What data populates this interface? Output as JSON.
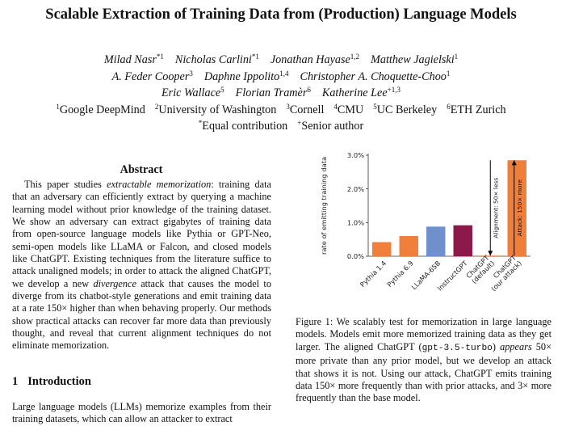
{
  "paper": {
    "title": "Scalable Extraction of Training Data from (Production) Language Models",
    "author_lines": [
      [
        {
          "name": "Milad Nasr",
          "sup": "*1"
        },
        {
          "name": "Nicholas Carlini",
          "sup": "*1"
        },
        {
          "name": "Jonathan Hayase",
          "sup": "1,2"
        },
        {
          "name": "Matthew Jagielski",
          "sup": "1"
        }
      ],
      [
        {
          "name": "A. Feder Cooper",
          "sup": "3"
        },
        {
          "name": "Daphne Ippolito",
          "sup": "1,4"
        },
        {
          "name": "Christopher A. Choquette-Choo",
          "sup": "1"
        }
      ],
      [
        {
          "name": "Eric Wallace",
          "sup": "5"
        },
        {
          "name": "Florian Tramèr",
          "sup": "6"
        },
        {
          "name": "Katherine Lee",
          "sup": "+1,3"
        }
      ]
    ],
    "affiliations": [
      {
        "sup": "1",
        "name": "Google DeepMind"
      },
      {
        "sup": "2",
        "name": "University of Washington"
      },
      {
        "sup": "3",
        "name": "Cornell"
      },
      {
        "sup": "4",
        "name": "CMU"
      },
      {
        "sup": "5",
        "name": "UC Berkeley"
      },
      {
        "sup": "6",
        "name": "ETH Zurich"
      }
    ],
    "notes": [
      {
        "sup": "*",
        "text": "Equal contribution"
      },
      {
        "sup": "+",
        "text": "Senior author"
      }
    ]
  },
  "abstract": {
    "heading": "Abstract",
    "runs": [
      {
        "t": "This paper studies "
      },
      {
        "t": "extractable memorization",
        "i": true
      },
      {
        "t": ": training data that an adversary can efficiently extract by querying a machine learning model without prior knowledge of the training dataset. We show an adversary can extract gigabytes of training data from open-source language models like Pythia or GPT-Neo, semi-open models like LLaMA or Falcon, and closed models like ChatGPT. Existing techniques from the literature suffice to attack unaligned models; in order to attack the aligned ChatGPT, we develop a new "
      },
      {
        "t": "divergence",
        "i": true
      },
      {
        "t": " attack that causes the model to diverge from its chatbot-style generations and emit training data at a rate 150× higher than when behaving properly. Our methods show practical attacks can recover far more data than previously thought, and reveal that current alignment techniques do not eliminate memorization."
      }
    ]
  },
  "introduction": {
    "number": "1",
    "heading": "Introduction",
    "text": "Large language models (LLMs) memorize examples from their training datasets, which can allow an attacker to extract"
  },
  "figure": {
    "caption_runs": [
      {
        "t": "Figure 1: We scalably test for memorization in large language models. Models emit more memorized training data as they get larger. The aligned ChatGPT ("
      },
      {
        "t": "gpt-3.5-turbo",
        "m": true
      },
      {
        "t": ") "
      },
      {
        "t": "appears",
        "i": true
      },
      {
        "t": " 50× more private than any prior model, but we develop an attack that shows it is not. Using our attack, ChatGPT emits training data 150× more frequently than with prior attacks, and 3× more frequently than the base model."
      }
    ]
  },
  "chart_data": {
    "type": "bar",
    "ylabel": "rate of emitting training data",
    "ylim": [
      0,
      3
    ],
    "y_ticks": [
      0,
      1,
      2,
      3
    ],
    "y_tick_labels": [
      "0.0%",
      "1.0%",
      "2.0%",
      "3.0%"
    ],
    "grid": false,
    "categories": [
      "Pythia 1.4",
      "Pythia 6.9",
      "LLaMA-65B",
      "InstructGPT",
      "ChatGPT (default)",
      "ChatGPT (our attack)"
    ],
    "category_label_lines": [
      [
        "Pythia 1.4"
      ],
      [
        "Pythia 6.9"
      ],
      [
        "LLaMA-65B"
      ],
      [
        "InstructGPT"
      ],
      [
        "ChatGPT",
        "(default)"
      ],
      [
        "ChatGPT",
        "(our attack)"
      ]
    ],
    "values": [
      0.42,
      0.6,
      0.88,
      0.92,
      0.018,
      2.85
    ],
    "colors": [
      "#f07f3c",
      "#f07f3c",
      "#6f8fcd",
      "#8b1a4a",
      "#f07f3c",
      "#f07f3c"
    ],
    "annotations": [
      {
        "text": "Alignment: 50× less",
        "from": 2.85,
        "to": 0.018,
        "category_index": 4
      },
      {
        "text": "Attack: 150× more",
        "from": 0.018,
        "to": 2.85,
        "category_index": 5
      }
    ]
  }
}
